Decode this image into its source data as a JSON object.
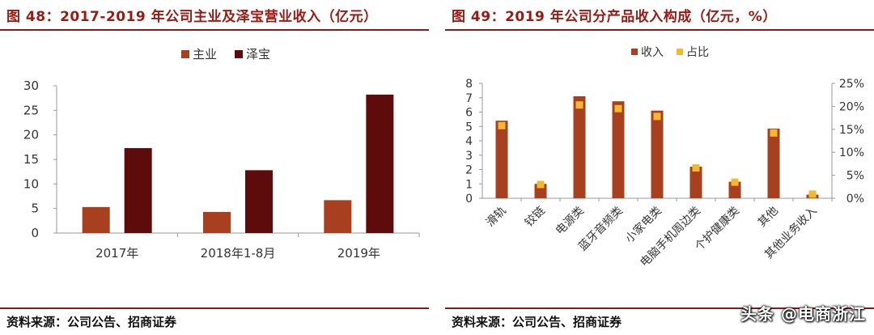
{
  "left": {
    "title": "图 48：2017-2019 年公司主业及泽宝营业收入（亿元）",
    "source": "资料来源：公司公告、招商证券",
    "chart_data": {
      "type": "bar",
      "categories": [
        "2017年",
        "2018年1-8月",
        "2019年"
      ],
      "series": [
        {
          "name": "主业",
          "color": "#a8401f",
          "values": [
            5.3,
            4.3,
            6.7
          ]
        },
        {
          "name": "泽宝",
          "color": "#5e0b0b",
          "values": [
            17.3,
            12.8,
            28.2
          ]
        }
      ],
      "yticks": [
        "0",
        "5",
        "10",
        "15",
        "20",
        "25",
        "30"
      ],
      "ylim": [
        0,
        30
      ],
      "grid": false,
      "legend": "top-center"
    }
  },
  "right": {
    "title": "图 49：2019 年公司分产品收入构成（亿元，%）",
    "source": "资料来源：公司公告、招商证券",
    "chart_data": {
      "type": "bar",
      "categories": [
        "滑轨",
        "铰链",
        "电源类",
        "蓝牙音频类",
        "小家电类",
        "电脑手机周边类",
        "个护健康类",
        "其他",
        "其他业务收入"
      ],
      "series": [
        {
          "name": "收入",
          "color": "#a8401f",
          "type": "bar",
          "axis": "left",
          "values": [
            5.4,
            1.0,
            7.1,
            6.75,
            6.1,
            2.2,
            1.15,
            4.85,
            0.25
          ]
        },
        {
          "name": "占比",
          "color": "#f2b92e",
          "type": "scatter",
          "axis": "right",
          "values": [
            15.8,
            3.0,
            20.3,
            19.5,
            17.8,
            6.6,
            3.5,
            14.2,
            0.9
          ]
        }
      ],
      "yticks_left": [
        "0",
        "1",
        "2",
        "3",
        "4",
        "5",
        "6",
        "7",
        "8"
      ],
      "ylim_left": [
        0,
        8
      ],
      "yticks_right": [
        "0%",
        "5%",
        "10%",
        "15%",
        "20%",
        "25%"
      ],
      "ylim_right": [
        0,
        25
      ],
      "grid": false,
      "legend": "top-center"
    }
  },
  "watermark": "头条 @电商浙江"
}
